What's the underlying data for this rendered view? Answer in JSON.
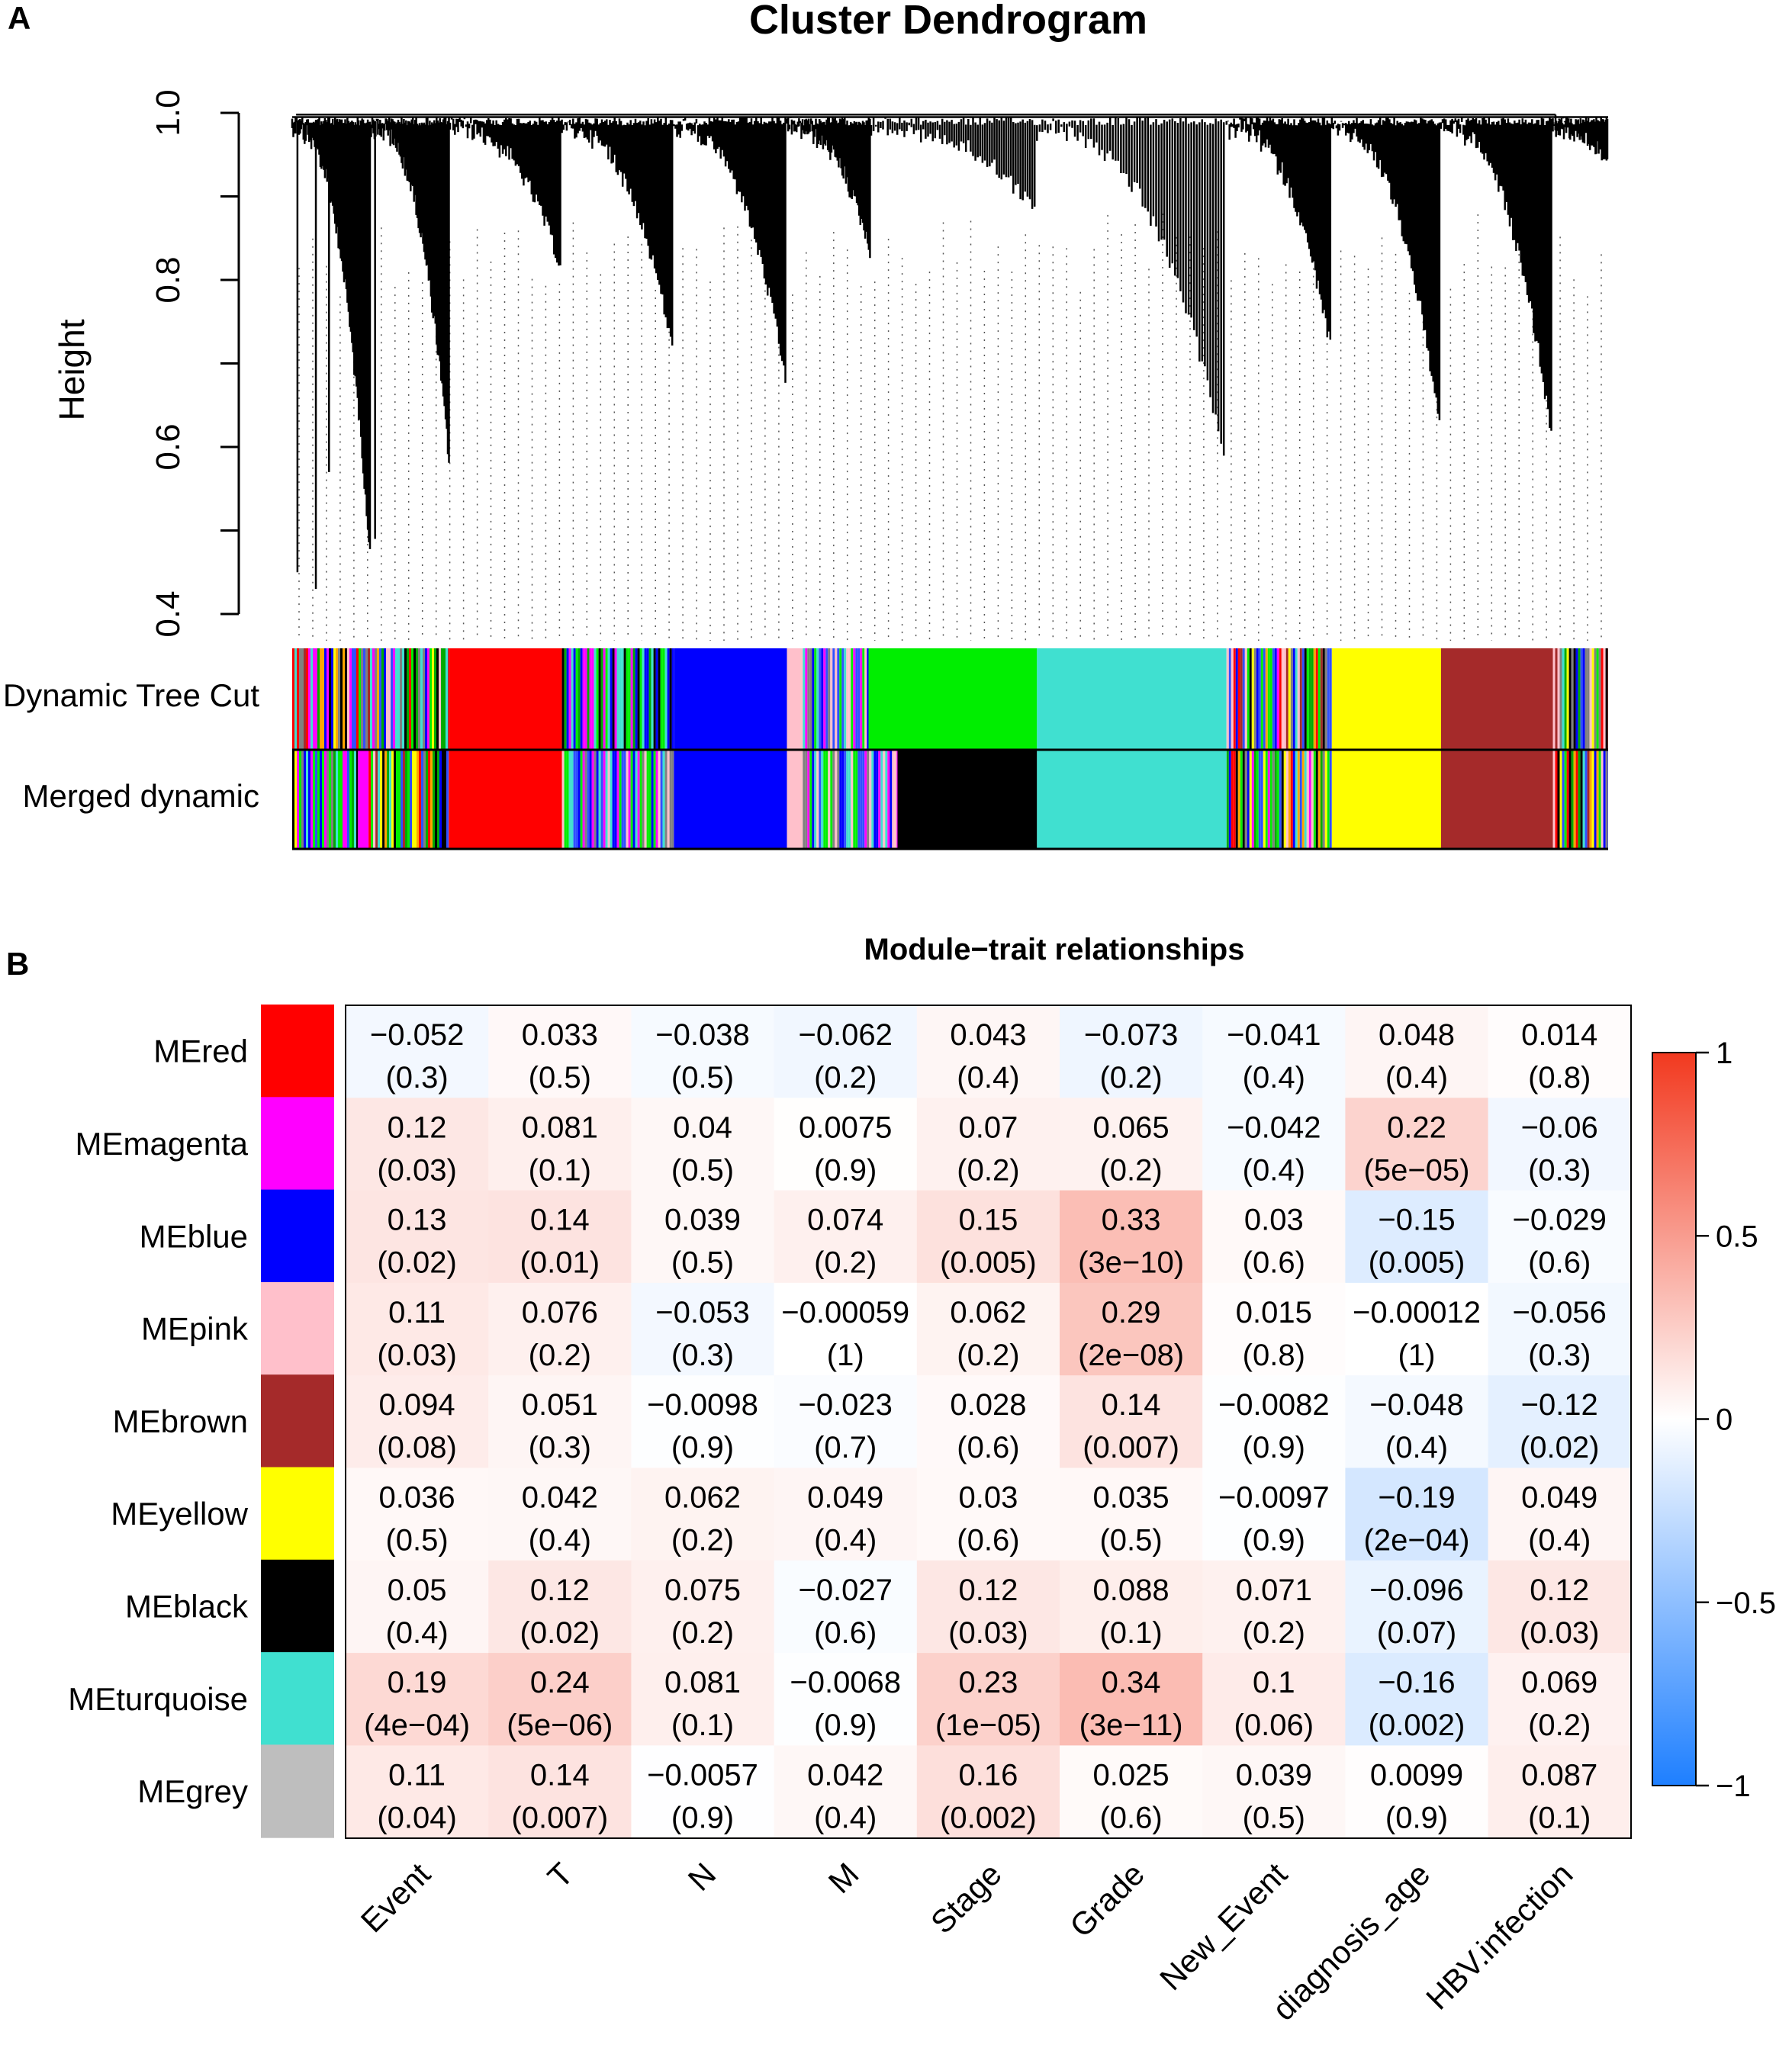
{
  "panel_a": {
    "label": "A",
    "title": "Cluster Dendrogram",
    "ylabel": "Height",
    "yticks": [
      "0.4",
      "0.6",
      "0.8",
      "1.0"
    ],
    "row_labels": [
      "Dynamic Tree Cut",
      "Merged dynamic"
    ]
  },
  "panel_b": {
    "label": "B",
    "title": "Module−trait relationships"
  },
  "chart_data": [
    {
      "type": "dendrogram",
      "title": "Cluster Dendrogram",
      "ylabel": "Height",
      "ylim": [
        0.4,
        1.0
      ],
      "yticks": [
        0.4,
        0.6,
        0.8,
        1.0
      ],
      "color_bars": {
        "Dynamic Tree Cut": [
          {
            "color": "mixed",
            "from": 0.0,
            "to": 0.119
          },
          {
            "color": "#ff0000",
            "from": 0.119,
            "to": 0.205
          },
          {
            "color": "mixed-green",
            "from": 0.205,
            "to": 0.29
          },
          {
            "color": "#0000ff",
            "from": 0.29,
            "to": 0.376
          },
          {
            "color": "#ffc0cb",
            "from": 0.376,
            "to": 0.388
          },
          {
            "color": "mixed-blue",
            "from": 0.388,
            "to": 0.438
          },
          {
            "color": "#00ee00",
            "from": 0.438,
            "to": 0.566
          },
          {
            "color": "#40e0d0",
            "from": 0.566,
            "to": 0.71
          },
          {
            "color": "mixed",
            "from": 0.71,
            "to": 0.79
          },
          {
            "color": "#ffff00",
            "from": 0.79,
            "to": 0.873
          },
          {
            "color": "#a52a2a",
            "from": 0.873,
            "to": 0.958
          },
          {
            "color": "mixed",
            "from": 0.958,
            "to": 1.0
          }
        ],
        "Merged dynamic": [
          {
            "color": "mixed",
            "from": 0.0,
            "to": 0.05
          },
          {
            "color": "#ff00ff",
            "from": 0.05,
            "to": 0.058
          },
          {
            "color": "mixed",
            "from": 0.058,
            "to": 0.119
          },
          {
            "color": "#ff0000",
            "from": 0.119,
            "to": 0.205
          },
          {
            "color": "mixed-blue",
            "from": 0.205,
            "to": 0.29
          },
          {
            "color": "#0000ff",
            "from": 0.29,
            "to": 0.376
          },
          {
            "color": "#ffc0cb",
            "from": 0.376,
            "to": 0.388
          },
          {
            "color": "mixed-blue",
            "from": 0.388,
            "to": 0.46
          },
          {
            "color": "#000000",
            "from": 0.46,
            "to": 0.566
          },
          {
            "color": "#40e0d0",
            "from": 0.566,
            "to": 0.71
          },
          {
            "color": "mixed",
            "from": 0.71,
            "to": 0.79
          },
          {
            "color": "#ffff00",
            "from": 0.79,
            "to": 0.873
          },
          {
            "color": "#a52a2a",
            "from": 0.873,
            "to": 0.958
          },
          {
            "color": "mixed",
            "from": 0.958,
            "to": 1.0
          }
        ]
      }
    },
    {
      "type": "heatmap",
      "title": "Module−trait relationships",
      "rows": [
        "MEred",
        "MEmagenta",
        "MEblue",
        "MEpink",
        "MEbrown",
        "MEyellow",
        "MEblack",
        "MEturquoise",
        "MEgrey"
      ],
      "row_colors": [
        "#ff0000",
        "#ff00ff",
        "#0000ff",
        "#ffc0cb",
        "#a52a2a",
        "#ffff00",
        "#000000",
        "#40e0d0",
        "#bebebe"
      ],
      "columns": [
        "Event",
        "T",
        "N",
        "M",
        "Stage",
        "Grade",
        "New_Event",
        "diagnosis_age",
        "HBV.infection"
      ],
      "values": [
        [
          -0.052,
          0.033,
          -0.038,
          -0.062,
          0.043,
          -0.073,
          -0.041,
          0.048,
          0.014
        ],
        [
          0.12,
          0.081,
          0.04,
          0.0075,
          0.07,
          0.065,
          -0.042,
          0.22,
          -0.06
        ],
        [
          0.13,
          0.14,
          0.039,
          0.074,
          0.15,
          0.33,
          0.03,
          -0.15,
          -0.029
        ],
        [
          0.11,
          0.076,
          -0.053,
          -0.00059,
          0.062,
          0.29,
          0.015,
          -0.00012,
          -0.056
        ],
        [
          0.094,
          0.051,
          -0.0098,
          -0.023,
          0.028,
          0.14,
          -0.0082,
          -0.048,
          -0.12
        ],
        [
          0.036,
          0.042,
          0.062,
          0.049,
          0.03,
          0.035,
          -0.0097,
          -0.19,
          0.049
        ],
        [
          0.05,
          0.12,
          0.075,
          -0.027,
          0.12,
          0.088,
          0.071,
          -0.096,
          0.12
        ],
        [
          0.19,
          0.24,
          0.081,
          -0.0068,
          0.23,
          0.34,
          0.1,
          -0.16,
          0.069
        ],
        [
          0.11,
          0.14,
          -0.0057,
          0.042,
          0.16,
          0.025,
          0.039,
          0.0099,
          0.087
        ]
      ],
      "cell_text": [
        [
          "−0.052",
          "0.033",
          "−0.038",
          "−0.062",
          "0.043",
          "−0.073",
          "−0.041",
          "0.048",
          "0.014"
        ],
        [
          "0.12",
          "0.081",
          "0.04",
          "0.0075",
          "0.07",
          "0.065",
          "−0.042",
          "0.22",
          "−0.06"
        ],
        [
          "0.13",
          "0.14",
          "0.039",
          "0.074",
          "0.15",
          "0.33",
          "0.03",
          "−0.15",
          "−0.029"
        ],
        [
          "0.11",
          "0.076",
          "−0.053",
          "−0.00059",
          "0.062",
          "0.29",
          "0.015",
          "−0.00012",
          "−0.056"
        ],
        [
          "0.094",
          "0.051",
          "−0.0098",
          "−0.023",
          "0.028",
          "0.14",
          "−0.0082",
          "−0.048",
          "−0.12"
        ],
        [
          "0.036",
          "0.042",
          "0.062",
          "0.049",
          "0.03",
          "0.035",
          "−0.0097",
          "−0.19",
          "0.049"
        ],
        [
          "0.05",
          "0.12",
          "0.075",
          "−0.027",
          "0.12",
          "0.088",
          "0.071",
          "−0.096",
          "0.12"
        ],
        [
          "0.19",
          "0.24",
          "0.081",
          "−0.0068",
          "0.23",
          "0.34",
          "0.1",
          "−0.16",
          "0.069"
        ],
        [
          "0.11",
          "0.14",
          "−0.0057",
          "0.042",
          "0.16",
          "0.025",
          "0.039",
          "0.0099",
          "0.087"
        ]
      ],
      "pvalue_text": [
        [
          "(0.3)",
          "(0.5)",
          "(0.5)",
          "(0.2)",
          "(0.4)",
          "(0.2)",
          "(0.4)",
          "(0.4)",
          "(0.8)"
        ],
        [
          "(0.03)",
          "(0.1)",
          "(0.5)",
          "(0.9)",
          "(0.2)",
          "(0.2)",
          "(0.4)",
          "(5e−05)",
          "(0.3)"
        ],
        [
          "(0.02)",
          "(0.01)",
          "(0.5)",
          "(0.2)",
          "(0.005)",
          "(3e−10)",
          "(0.6)",
          "(0.005)",
          "(0.6)"
        ],
        [
          "(0.03)",
          "(0.2)",
          "(0.3)",
          "(1)",
          "(0.2)",
          "(2e−08)",
          "(0.8)",
          "(1)",
          "(0.3)"
        ],
        [
          "(0.08)",
          "(0.3)",
          "(0.9)",
          "(0.7)",
          "(0.6)",
          "(0.007)",
          "(0.9)",
          "(0.4)",
          "(0.02)"
        ],
        [
          "(0.5)",
          "(0.4)",
          "(0.2)",
          "(0.4)",
          "(0.6)",
          "(0.5)",
          "(0.9)",
          "(2e−04)",
          "(0.4)"
        ],
        [
          "(0.4)",
          "(0.02)",
          "(0.2)",
          "(0.6)",
          "(0.03)",
          "(0.1)",
          "(0.2)",
          "(0.07)",
          "(0.03)"
        ],
        [
          "(4e−04)",
          "(5e−06)",
          "(0.1)",
          "(0.9)",
          "(1e−05)",
          "(3e−11)",
          "(0.06)",
          "(0.002)",
          "(0.2)"
        ],
        [
          "(0.04)",
          "(0.007)",
          "(0.9)",
          "(0.4)",
          "(0.002)",
          "(0.6)",
          "(0.5)",
          "(0.9)",
          "(0.1)"
        ]
      ],
      "colorbar": {
        "range": [
          -1,
          1
        ],
        "ticks": [
          1,
          0.5,
          0,
          -0.5,
          -1
        ],
        "tick_labels": [
          "1",
          "0.5",
          "0",
          "−0.5",
          "−1"
        ],
        "colors": {
          "low": "#1e7fff",
          "mid": "#ffffff",
          "high": "#f2391f"
        }
      }
    }
  ]
}
